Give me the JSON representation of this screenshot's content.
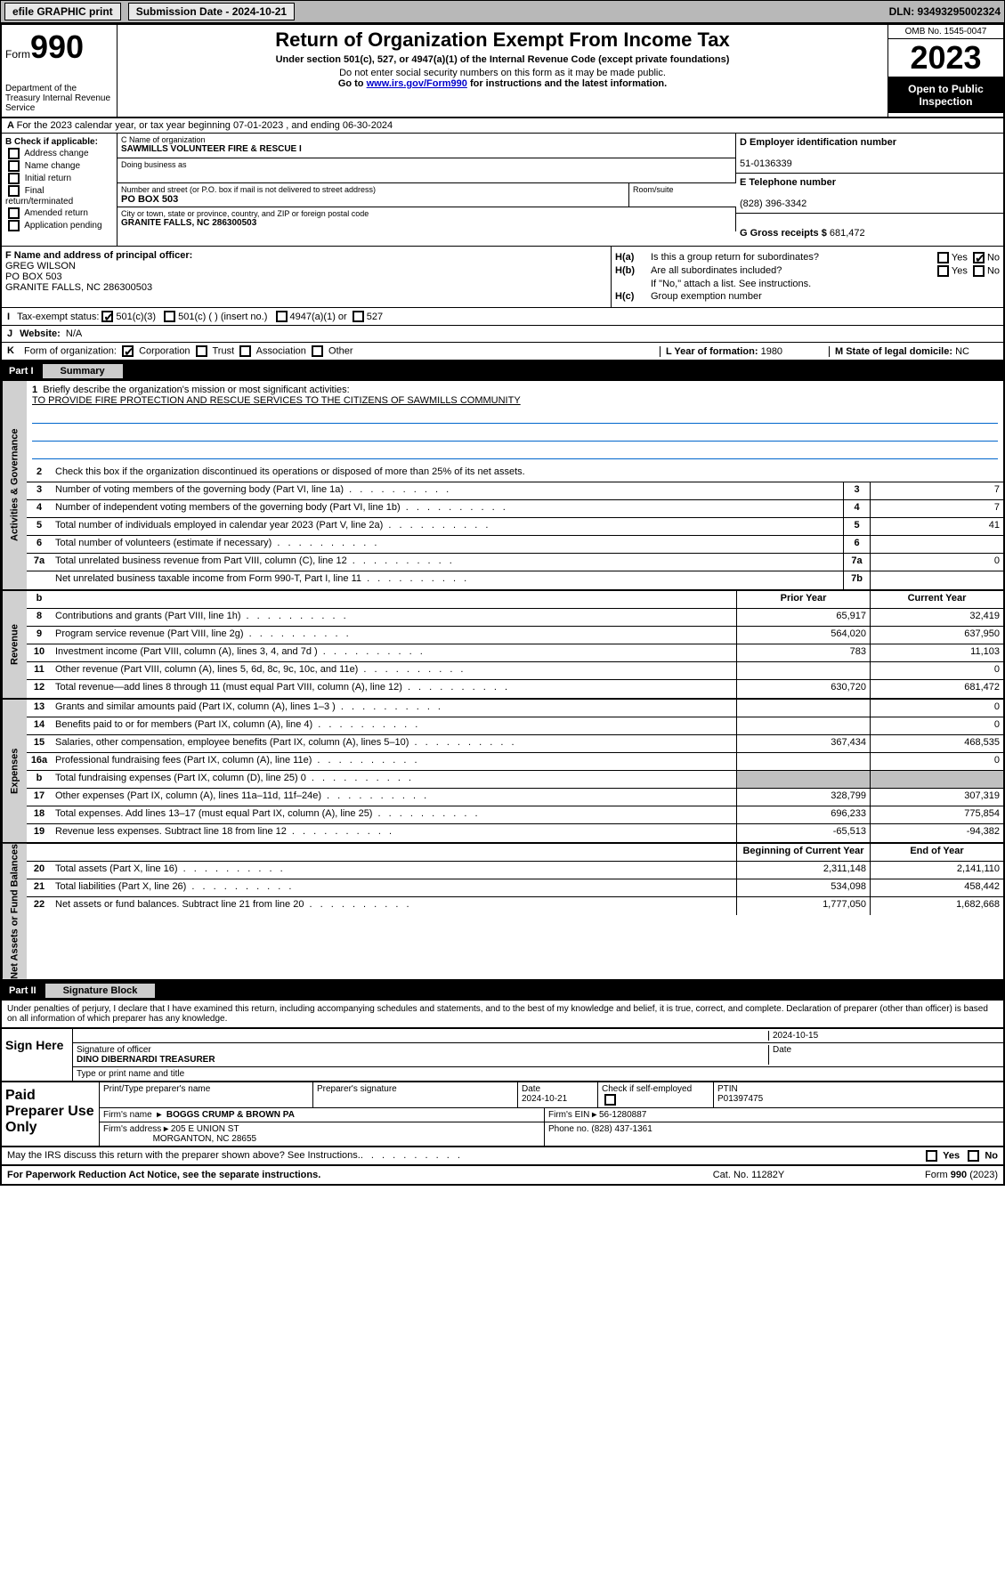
{
  "topbar": {
    "efile": "efile GRAPHIC print",
    "submission": "Submission Date - 2024-10-21",
    "dln": "DLN: 93493295002324"
  },
  "header": {
    "form_prefix": "Form",
    "form_num": "990",
    "dept": "Department of the Treasury\nInternal Revenue Service",
    "title": "Return of Organization Exempt From Income Tax",
    "sub": "Under section 501(c), 527, or 4947(a)(1) of the Internal Revenue Code (except private foundations)",
    "note1": "Do not enter social security numbers on this form as it may be made public.",
    "note2_pre": "Go to ",
    "note2_link": "www.irs.gov/Form990",
    "note2_post": " for instructions and the latest information.",
    "omb": "OMB No. 1545-0047",
    "year": "2023",
    "insp": "Open to Public Inspection"
  },
  "row_a": "For the 2023 calendar year, or tax year beginning 07-01-2023   , and ending 06-30-2024",
  "b": {
    "hdr": "B Check if applicable:",
    "items": [
      "Address change",
      "Name change",
      "Initial return",
      "Final return/terminated",
      "Amended return",
      "Application pending"
    ]
  },
  "c": {
    "name_lbl": "C Name of organization",
    "name": "SAWMILLS VOLUNTEER FIRE & RESCUE I",
    "dba_lbl": "Doing business as",
    "street_lbl": "Number and street (or P.O. box if mail is not delivered to street address)",
    "street": "PO BOX 503",
    "room_lbl": "Room/suite",
    "city_lbl": "City or town, state or province, country, and ZIP or foreign postal code",
    "city": "GRANITE FALLS, NC  286300503"
  },
  "d": {
    "lbl": "D Employer identification number",
    "val": "51-0136339"
  },
  "e": {
    "lbl": "E Telephone number",
    "val": "(828) 396-3342"
  },
  "g": {
    "lbl": "G Gross receipts $",
    "val": "681,472"
  },
  "f": {
    "lbl": "F  Name and address of principal officer:",
    "name": "GREG WILSON",
    "addr1": "PO BOX 503",
    "addr2": "GRANITE FALLS, NC  286300503"
  },
  "h": {
    "a": "Is this a group return for subordinates?",
    "b": "Are all subordinates included?",
    "b_note": "If \"No,\" attach a list. See instructions.",
    "c": "Group exemption number"
  },
  "i": {
    "lbl": "Tax-exempt status:",
    "o1": "501(c)(3)",
    "o2": "501(c) (  ) (insert no.)",
    "o3": "4947(a)(1) or",
    "o4": "527"
  },
  "j": {
    "lbl": "Website:",
    "val": "N/A"
  },
  "k": {
    "lbl": "Form of organization:",
    "o1": "Corporation",
    "o2": "Trust",
    "o3": "Association",
    "o4": "Other"
  },
  "l": {
    "lbl": "L Year of formation:",
    "val": "1980"
  },
  "m": {
    "lbl": "M State of legal domicile:",
    "val": "NC"
  },
  "part1": {
    "num": "Part I",
    "title": "Summary"
  },
  "summary": {
    "mission_lbl": "Briefly describe the organization's mission or most significant activities:",
    "mission": "TO PROVIDE FIRE PROTECTION AND RESCUE SERVICES TO THE CITIZENS OF SAWMILLS COMMUNITY",
    "line2": "Check this box      if the organization discontinued its operations or disposed of more than 25% of its net assets.",
    "gov": [
      {
        "n": "3",
        "d": "Number of voting members of the governing body (Part VI, line 1a)",
        "bx": "3",
        "v": "7"
      },
      {
        "n": "4",
        "d": "Number of independent voting members of the governing body (Part VI, line 1b)",
        "bx": "4",
        "v": "7"
      },
      {
        "n": "5",
        "d": "Total number of individuals employed in calendar year 2023 (Part V, line 2a)",
        "bx": "5",
        "v": "41"
      },
      {
        "n": "6",
        "d": "Total number of volunteers (estimate if necessary)",
        "bx": "6",
        "v": ""
      },
      {
        "n": "7a",
        "d": "Total unrelated business revenue from Part VIII, column (C), line 12",
        "bx": "7a",
        "v": "0"
      },
      {
        "n": "",
        "d": "Net unrelated business taxable income from Form 990-T, Part I, line 11",
        "bx": "7b",
        "v": ""
      }
    ],
    "hdr_b": "b",
    "col_py": "Prior Year",
    "col_cy": "Current Year",
    "rev": [
      {
        "n": "8",
        "d": "Contributions and grants (Part VIII, line 1h)",
        "v1": "65,917",
        "v2": "32,419"
      },
      {
        "n": "9",
        "d": "Program service revenue (Part VIII, line 2g)",
        "v1": "564,020",
        "v2": "637,950"
      },
      {
        "n": "10",
        "d": "Investment income (Part VIII, column (A), lines 3, 4, and 7d )",
        "v1": "783",
        "v2": "11,103"
      },
      {
        "n": "11",
        "d": "Other revenue (Part VIII, column (A), lines 5, 6d, 8c, 9c, 10c, and 11e)",
        "v1": "",
        "v2": "0"
      },
      {
        "n": "12",
        "d": "Total revenue—add lines 8 through 11 (must equal Part VIII, column (A), line 12)",
        "v1": "630,720",
        "v2": "681,472"
      }
    ],
    "exp": [
      {
        "n": "13",
        "d": "Grants and similar amounts paid (Part IX, column (A), lines 1–3 )",
        "v1": "",
        "v2": "0"
      },
      {
        "n": "14",
        "d": "Benefits paid to or for members (Part IX, column (A), line 4)",
        "v1": "",
        "v2": "0"
      },
      {
        "n": "15",
        "d": "Salaries, other compensation, employee benefits (Part IX, column (A), lines 5–10)",
        "v1": "367,434",
        "v2": "468,535"
      },
      {
        "n": "16a",
        "d": "Professional fundraising fees (Part IX, column (A), line 11e)",
        "v1": "",
        "v2": "0"
      },
      {
        "n": "b",
        "d": "Total fundraising expenses (Part IX, column (D), line 25) 0",
        "v1": "",
        "v2": "",
        "gray": true
      },
      {
        "n": "17",
        "d": "Other expenses (Part IX, column (A), lines 11a–11d, 11f–24e)",
        "v1": "328,799",
        "v2": "307,319"
      },
      {
        "n": "18",
        "d": "Total expenses. Add lines 13–17 (must equal Part IX, column (A), line 25)",
        "v1": "696,233",
        "v2": "775,854"
      },
      {
        "n": "19",
        "d": "Revenue less expenses. Subtract line 18 from line 12",
        "v1": "-65,513",
        "v2": "-94,382"
      }
    ],
    "col_boy": "Beginning of Current Year",
    "col_eoy": "End of Year",
    "net": [
      {
        "n": "20",
        "d": "Total assets (Part X, line 16)",
        "v1": "2,311,148",
        "v2": "2,141,110"
      },
      {
        "n": "21",
        "d": "Total liabilities (Part X, line 26)",
        "v1": "534,098",
        "v2": "458,442"
      },
      {
        "n": "22",
        "d": "Net assets or fund balances. Subtract line 21 from line 20",
        "v1": "1,777,050",
        "v2": "1,682,668"
      }
    ],
    "vlabels": {
      "gov": "Activities & Governance",
      "rev": "Revenue",
      "exp": "Expenses",
      "net": "Net Assets or Fund Balances"
    }
  },
  "part2": {
    "num": "Part II",
    "title": "Signature Block"
  },
  "sig": {
    "decl": "Under penalties of perjury, I declare that I have examined this return, including accompanying schedules and statements, and to the best of my knowledge and belief, it is true, correct, and complete. Declaration of preparer (other than officer) is based on all information of which preparer has any knowledge.",
    "sign_here": "Sign Here",
    "date": "2024-10-15",
    "sig_lbl": "Signature of officer",
    "officer": "DINO DIBERNARDI TREASURER",
    "name_lbl": "Type or print name and title",
    "date_lbl": "Date"
  },
  "prep": {
    "hdr": "Paid Preparer Use Only",
    "c1": "Print/Type preparer's name",
    "c2": "Preparer's signature",
    "c3_lbl": "Date",
    "c3": "2024-10-21",
    "c4": "Check       if self-employed",
    "c5_lbl": "PTIN",
    "c5": "P01397475",
    "firm_lbl": "Firm's name",
    "firm": "BOGGS CRUMP & BROWN PA",
    "ein_lbl": "Firm's EIN",
    "ein": "56-1280887",
    "addr_lbl": "Firm's address",
    "addr1": "205 E UNION ST",
    "addr2": "MORGANTON, NC  28655",
    "phone_lbl": "Phone no.",
    "phone": "(828) 437-1361"
  },
  "discuss": "May the IRS discuss this return with the preparer shown above? See Instructions.",
  "footer": {
    "l": "For Paperwork Reduction Act Notice, see the separate instructions.",
    "c": "Cat. No. 11282Y",
    "r": "Form 990 (2023)"
  }
}
